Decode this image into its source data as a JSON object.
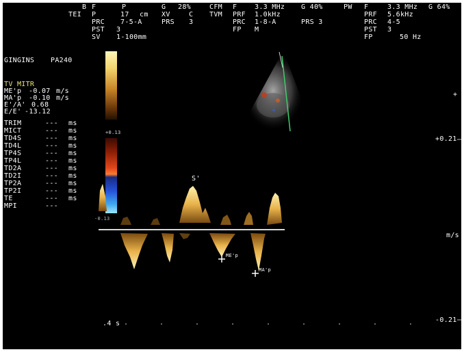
{
  "colors": {
    "background": "#000000",
    "text": "#ffffff",
    "accent_measure": "#e8e27a",
    "doppler_gold": "#e8b24a",
    "sector_line": "#3fcf6a"
  },
  "header": {
    "row1": {
      "c1": "B",
      "c2": "F",
      "c3": "P",
      "c4": "G",
      "c5": "28%",
      "c6": "CFM",
      "c7": "F",
      "c8": "3.3 MHz",
      "c9": "G 40%",
      "c10": "PW",
      "c11": "F",
      "c12": "3.3 MHz",
      "c13": "G 64%"
    },
    "row2": {
      "c1": "TEI",
      "c2": "P",
      "c3": "17",
      "c4": "cm",
      "c5": "XV",
      "c6": "C",
      "c7": "TVM",
      "c8": "PRF",
      "c9": "1.0kHz",
      "c10": "PRF",
      "c11": "5.6kHz"
    },
    "row3": {
      "c1": "PRC",
      "c2": "7-5-A",
      "c3": "PRS",
      "c4": "3",
      "c5": "PRC",
      "c6": "1-8-A",
      "c7": "PRS 3",
      "c8": "PRC",
      "c9": "4-5"
    },
    "row4": {
      "c1": "PST",
      "c2": "3",
      "c3": "FP",
      "c4": "M",
      "c5": "PST",
      "c6": "3"
    },
    "row5": {
      "c1": "SV",
      "c2": "1-100mm",
      "c3": "FP",
      "c4": "50 Hz"
    }
  },
  "patient": {
    "name": "GINGINS",
    "probe": "PA240"
  },
  "measurement": {
    "title": "TV MITR",
    "lines": [
      {
        "label": "ME'p",
        "value": "-0.07",
        "unit": "m/s"
      },
      {
        "label": "MA'p",
        "value": "-0.10",
        "unit": "m/s"
      },
      {
        "label": "E'/A'",
        "value": "0.68",
        "unit": ""
      },
      {
        "label": "E/E'",
        "value": "-13.12",
        "unit": ""
      }
    ],
    "rows": [
      {
        "label": "TRIM",
        "value": "---",
        "unit": "ms"
      },
      {
        "label": "MICT",
        "value": "---",
        "unit": "ms"
      },
      {
        "label": "TD4S",
        "value": "---",
        "unit": "ms"
      },
      {
        "label": "TD4L",
        "value": "---",
        "unit": "ms"
      },
      {
        "label": "TP4S",
        "value": "---",
        "unit": "ms"
      },
      {
        "label": "TP4L",
        "value": "---",
        "unit": "ms"
      },
      {
        "label": "TD2A",
        "value": "---",
        "unit": "ms"
      },
      {
        "label": "TD2I",
        "value": "---",
        "unit": "ms"
      },
      {
        "label": "TP2A",
        "value": "---",
        "unit": "ms"
      },
      {
        "label": "TP2I",
        "value": "---",
        "unit": "ms"
      },
      {
        "label": "TE",
        "value": "---",
        "unit": "ms"
      },
      {
        "label": "MPI",
        "value": "---",
        "unit": ""
      }
    ]
  },
  "color_scale": {
    "top": "+0.13",
    "bottom": "-0.13"
  },
  "spectral": {
    "s_label": "S'",
    "e_label": "ME'p",
    "a_label": "MA'p"
  },
  "right_scale": {
    "top_marker": "+",
    "upper": "+0.21",
    "unit": "m/s",
    "lower": "-0.21"
  },
  "time_scale": {
    "label": ".4 s"
  }
}
